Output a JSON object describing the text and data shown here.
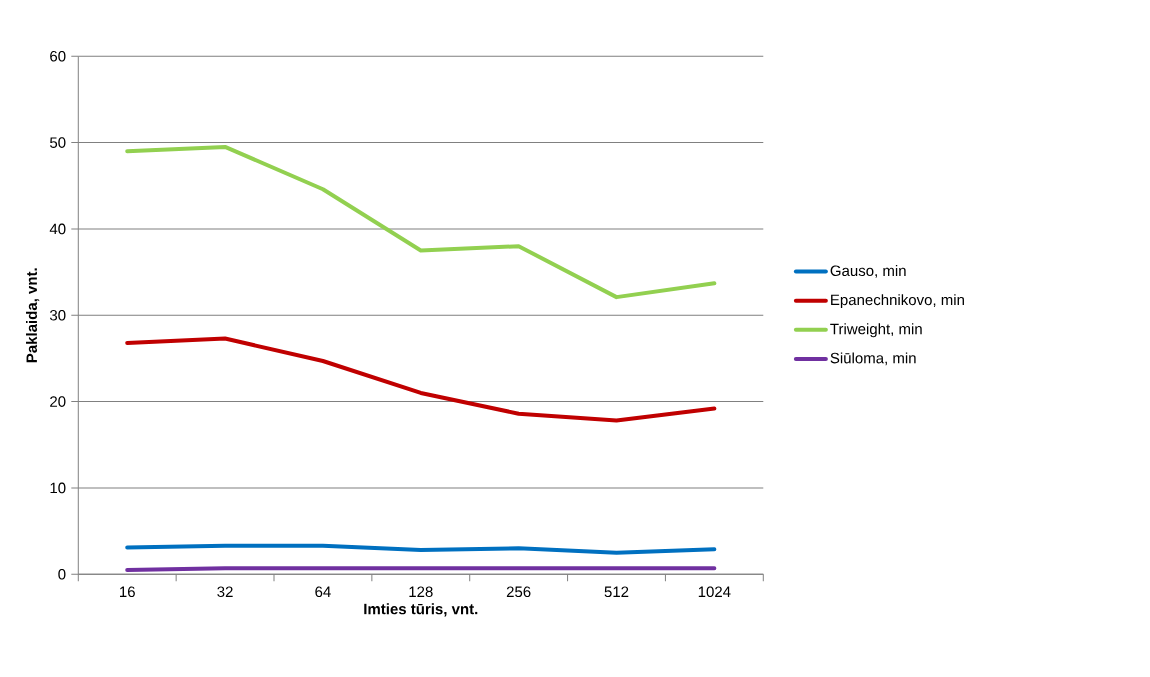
{
  "chart_data": {
    "type": "line",
    "xlabel": "Imties tūris, vnt.",
    "ylabel": "Paklaida, vnt.",
    "categories": [
      "16",
      "32",
      "64",
      "128",
      "256",
      "512",
      "1024"
    ],
    "series": [
      {
        "name": "Gauso, min",
        "color": "#0070c0",
        "values": [
          3.1,
          3.3,
          3.3,
          2.8,
          3.0,
          2.5,
          2.9
        ]
      },
      {
        "name": "Epanechnikovo, min",
        "color": "#c00000",
        "values": [
          26.8,
          27.3,
          24.7,
          21.0,
          18.6,
          17.8,
          19.2
        ]
      },
      {
        "name": "Triweight, min",
        "color": "#92d050",
        "values": [
          49.0,
          49.5,
          44.6,
          37.5,
          38.0,
          32.1,
          33.7
        ]
      },
      {
        "name": "Siūloma, min",
        "color": "#7030a0",
        "values": [
          0.5,
          0.7,
          0.7,
          0.7,
          0.7,
          0.7,
          0.7
        ]
      }
    ],
    "ylim": [
      0,
      60
    ],
    "yticks": [
      0,
      10,
      20,
      30,
      40,
      50,
      60
    ],
    "grid": "y",
    "legend": "right",
    "marker": "none"
  }
}
